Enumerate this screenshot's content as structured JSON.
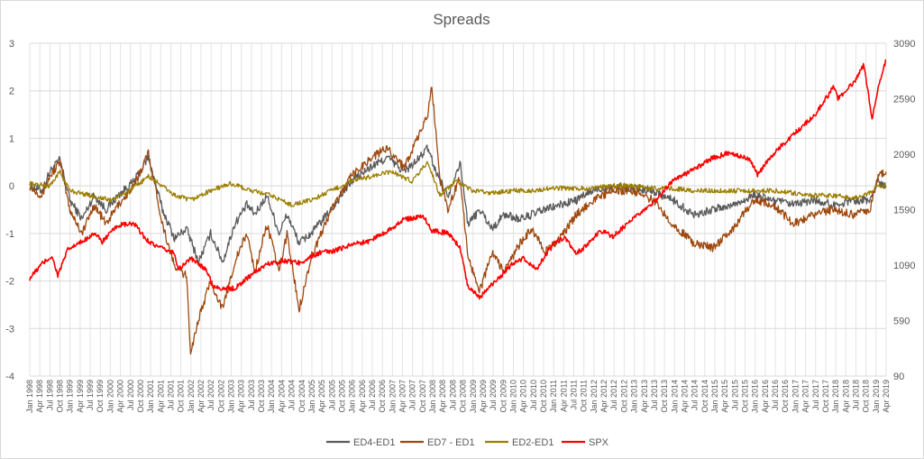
{
  "chart_data": {
    "type": "line",
    "title": "Spreads",
    "legend_position": "bottom",
    "grid": true,
    "x_range": [
      "Jan 1998",
      "Apr 2019"
    ],
    "y_left": {
      "range": [
        -4,
        3
      ],
      "ticks": [
        "-4",
        "-3",
        "-2",
        "-1",
        "0",
        "1",
        "2",
        "3"
      ]
    },
    "y_right": {
      "range": [
        90,
        3090
      ],
      "ticks": [
        "90",
        "590",
        "1090",
        "1590",
        "2090",
        "2590",
        "3090"
      ]
    },
    "x_tick_labels": [
      "Jan 1998",
      "Apr 1998",
      "Jul 1998",
      "Oct 1998",
      "Jan 1999",
      "Apr 1999",
      "Jul 1999",
      "Oct 1999",
      "Jan 2000",
      "Apr 2000",
      "Jul 2000",
      "Oct 2000",
      "Jan 2001",
      "Apr 2001",
      "Jul 2001",
      "Oct 2001",
      "Jan 2002",
      "Apr 2002",
      "Jul 2002",
      "Oct 2002",
      "Jan 2003",
      "Apr 2003",
      "Jul 2003",
      "Oct 2003",
      "Jan 2004",
      "Apr 2004",
      "Jul 2004",
      "Oct 2004",
      "Jan 2005",
      "Apr 2005",
      "Jul 2005",
      "Oct 2005",
      "Jan 2006",
      "Apr 2006",
      "Jul 2006",
      "Oct 2006",
      "Jan 2007",
      "Apr 2007",
      "Jul 2007",
      "Oct 2007",
      "Jan 2008",
      "Apr 2008",
      "Jul 2008",
      "Oct 2008",
      "Jan 2009",
      "Apr 2009",
      "Jul 2009",
      "Oct 2009",
      "Jan 2010",
      "Apr 2010",
      "Jul 2010",
      "Oct 2010",
      "Jan 2011",
      "Apr 2011",
      "Jul 2011",
      "Oct 2011",
      "Jan 2012",
      "Apr 2012",
      "Jul 2012",
      "Oct 2012",
      "Jan 2013",
      "Apr 2013",
      "Jul 2013",
      "Oct 2013",
      "Jan 2014",
      "Apr 2014",
      "Jul 2014",
      "Oct 2014",
      "Jan 2015",
      "Apr 2015",
      "Jul 2015",
      "Oct 2015",
      "Jan 2016",
      "Apr 2016",
      "Jul 2016",
      "Oct 2016",
      "Jan 2017",
      "Apr 2017",
      "Jul 2017",
      "Oct 2017",
      "Jan 2018",
      "Apr 2018",
      "Jul 2018",
      "Oct 2018",
      "Jan 2019",
      "Apr 2019"
    ],
    "series": [
      {
        "name": "ED4-ED1",
        "axis": "left",
        "color": "#5a5a5a",
        "x": [
          1998.0,
          1998.3,
          1998.5,
          1998.75,
          1999.0,
          1999.3,
          1999.6,
          1999.9,
          2000.2,
          2000.6,
          2000.95,
          2001.3,
          2001.6,
          2001.9,
          2002.2,
          2002.5,
          2002.8,
          2003.1,
          2003.4,
          2003.6,
          2003.9,
          2004.2,
          2004.4,
          2004.7,
          2005.0,
          2005.5,
          2006.0,
          2006.5,
          2006.9,
          2007.3,
          2007.6,
          2007.9,
          2008.1,
          2008.4,
          2008.7,
          2008.9,
          2009.2,
          2009.5,
          2009.8,
          2010.2,
          2010.5,
          2010.8,
          2011.2,
          2011.6,
          2012.0,
          2012.5,
          2013.0,
          2013.5,
          2014.0,
          2014.5,
          2015.0,
          2015.5,
          2016.0,
          2016.5,
          2017.0,
          2017.5,
          2018.0,
          2018.5,
          2018.9,
          2019.1,
          2019.3
        ],
        "y": [
          0.0,
          -0.1,
          0.3,
          0.55,
          -0.3,
          -0.7,
          -0.2,
          -0.5,
          -0.2,
          0.1,
          0.6,
          -0.5,
          -1.1,
          -0.9,
          -1.6,
          -1.0,
          -1.6,
          -0.8,
          -0.4,
          -0.6,
          -0.2,
          -1.0,
          -0.6,
          -1.2,
          -1.0,
          -0.5,
          0.1,
          0.4,
          0.6,
          0.3,
          0.5,
          0.8,
          0.3,
          -0.2,
          0.5,
          -0.8,
          -0.5,
          -0.9,
          -0.6,
          -0.7,
          -0.6,
          -0.5,
          -0.4,
          -0.3,
          -0.1,
          0.0,
          -0.05,
          -0.1,
          -0.3,
          -0.6,
          -0.5,
          -0.4,
          -0.2,
          -0.3,
          -0.4,
          -0.3,
          -0.4,
          -0.3,
          -0.3,
          0.1,
          0.0
        ]
      },
      {
        "name": "ED7 - ED1",
        "axis": "left",
        "color": "#9e480e",
        "x": [
          1998.0,
          1998.3,
          1998.5,
          1998.75,
          1999.0,
          1999.3,
          1999.6,
          1999.9,
          2000.2,
          2000.6,
          2000.95,
          2001.3,
          2001.6,
          2001.9,
          2002.0,
          2002.2,
          2002.5,
          2002.8,
          2003.1,
          2003.4,
          2003.6,
          2003.9,
          2004.2,
          2004.4,
          2004.7,
          2005.0,
          2005.5,
          2006.0,
          2006.5,
          2006.9,
          2007.3,
          2007.6,
          2007.9,
          2008.0,
          2008.2,
          2008.4,
          2008.7,
          2008.9,
          2009.2,
          2009.5,
          2009.8,
          2010.2,
          2010.5,
          2010.8,
          2011.2,
          2011.6,
          2012.0,
          2012.5,
          2013.0,
          2013.5,
          2014.0,
          2014.5,
          2015.0,
          2015.5,
          2016.0,
          2016.5,
          2017.0,
          2017.5,
          2018.0,
          2018.5,
          2018.9,
          2019.1,
          2019.3
        ],
        "y": [
          0.0,
          -0.2,
          0.2,
          0.5,
          -0.5,
          -1.0,
          -0.4,
          -0.8,
          -0.4,
          0.0,
          0.7,
          -0.8,
          -1.7,
          -1.9,
          -3.5,
          -2.8,
          -2.0,
          -2.6,
          -1.6,
          -1.0,
          -1.8,
          -0.8,
          -1.8,
          -1.0,
          -2.6,
          -1.5,
          -0.5,
          0.2,
          0.6,
          0.8,
          0.4,
          0.9,
          1.5,
          2.1,
          0.2,
          -0.5,
          0.2,
          -1.5,
          -2.2,
          -1.4,
          -1.8,
          -1.2,
          -0.9,
          -1.4,
          -1.1,
          -0.6,
          -0.3,
          -0.1,
          -0.1,
          -0.3,
          -0.8,
          -1.2,
          -1.3,
          -0.9,
          -0.3,
          -0.4,
          -0.8,
          -0.6,
          -0.5,
          -0.6,
          -0.5,
          0.2,
          0.3
        ]
      },
      {
        "name": "ED2-ED1",
        "axis": "left",
        "color": "#9c7e00",
        "x": [
          1998.0,
          1998.5,
          1998.75,
          1999.0,
          1999.5,
          2000.0,
          2000.5,
          2000.95,
          2001.3,
          2001.6,
          2002.0,
          2002.5,
          2003.0,
          2003.5,
          2004.0,
          2004.5,
          2005.0,
          2005.5,
          2006.0,
          2006.5,
          2007.0,
          2007.5,
          2007.9,
          2008.2,
          2008.6,
          2009.0,
          2009.5,
          2010.0,
          2010.5,
          2011.0,
          2011.5,
          2012.0,
          2012.5,
          2013.0,
          2013.5,
          2014.0,
          2014.5,
          2015.0,
          2015.5,
          2016.0,
          2016.5,
          2017.0,
          2017.5,
          2018.0,
          2018.5,
          2018.9,
          2019.1,
          2019.3
        ],
        "y": [
          0.05,
          0.0,
          0.3,
          -0.1,
          -0.2,
          -0.3,
          -0.1,
          0.2,
          0.0,
          -0.2,
          -0.3,
          -0.1,
          0.05,
          -0.1,
          -0.2,
          -0.4,
          -0.3,
          -0.1,
          0.1,
          0.2,
          0.3,
          0.1,
          0.5,
          -0.2,
          0.1,
          -0.1,
          -0.15,
          -0.1,
          -0.1,
          -0.05,
          -0.05,
          -0.05,
          0.0,
          0.0,
          -0.05,
          -0.05,
          -0.1,
          -0.1,
          -0.1,
          -0.1,
          -0.1,
          -0.15,
          -0.2,
          -0.2,
          -0.25,
          -0.15,
          0.0,
          0.0
        ]
      },
      {
        "name": "SPX",
        "axis": "right",
        "color": "#ff0000",
        "x": [
          1998.0,
          1998.3,
          1998.55,
          1998.7,
          1998.95,
          1999.3,
          1999.6,
          1999.8,
          2000.2,
          2000.6,
          2000.9,
          2001.2,
          2001.6,
          2001.7,
          2002.0,
          2002.4,
          2002.55,
          2002.8,
          2003.1,
          2003.5,
          2003.9,
          2004.3,
          2004.7,
          2005.2,
          2005.6,
          2006.0,
          2006.4,
          2006.9,
          2007.3,
          2007.8,
          2008.0,
          2008.4,
          2008.7,
          2008.9,
          2009.2,
          2009.6,
          2010.0,
          2010.3,
          2010.6,
          2011.0,
          2011.3,
          2011.6,
          2011.8,
          2012.2,
          2012.5,
          2013.0,
          2013.5,
          2014.0,
          2014.5,
          2015.0,
          2015.4,
          2015.6,
          2015.9,
          2016.1,
          2016.5,
          2017.0,
          2017.5,
          2018.0,
          2018.1,
          2018.5,
          2018.75,
          2018.95,
          2019.1,
          2019.3
        ],
        "y": [
          970,
          1100,
          1170,
          1000,
          1230,
          1300,
          1380,
          1300,
          1450,
          1460,
          1320,
          1250,
          1200,
          1050,
          1150,
          1050,
          900,
          880,
          880,
          1000,
          1100,
          1130,
          1110,
          1200,
          1220,
          1280,
          1300,
          1400,
          1500,
          1530,
          1400,
          1380,
          1250,
          900,
          800,
          950,
          1100,
          1150,
          1050,
          1280,
          1330,
          1200,
          1250,
          1400,
          1350,
          1500,
          1650,
          1850,
          1950,
          2060,
          2100,
          2080,
          2050,
          1900,
          2100,
          2270,
          2430,
          2700,
          2590,
          2740,
          2900,
          2400,
          2700,
          2940
        ]
      }
    ]
  }
}
